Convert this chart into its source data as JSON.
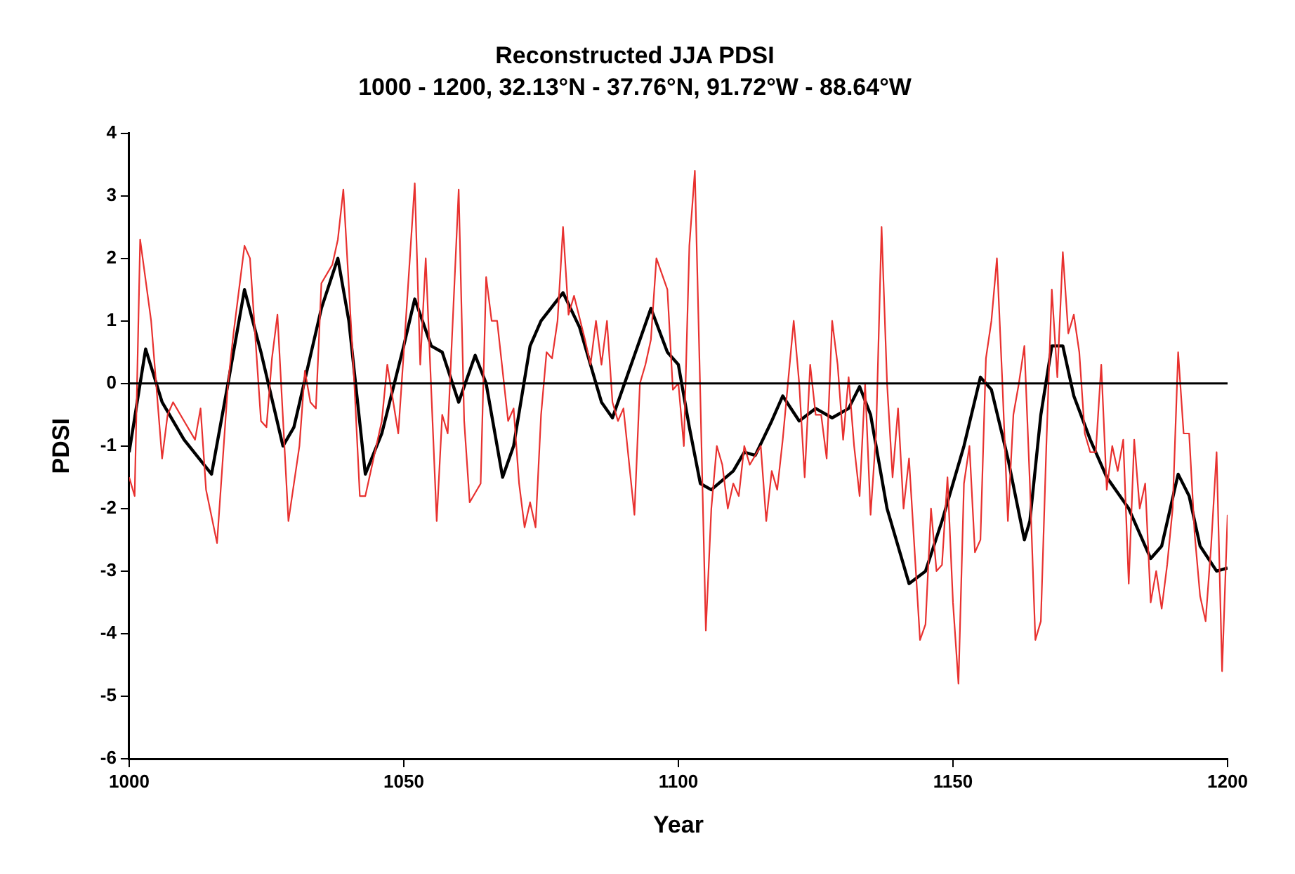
{
  "chart_data": {
    "type": "line",
    "title": "Reconstructed JJA PDSI",
    "subtitle": "1000 - 1200, 32.13°N - 37.76°N, 91.72°W - 88.64°W",
    "xlabel": "Year",
    "ylabel": "PDSI",
    "xlim": [
      1000,
      1200
    ],
    "xticks": [
      1000,
      1050,
      1100,
      1150,
      1200
    ],
    "ylim": [
      -6,
      4
    ],
    "yticks": [
      -6,
      -5,
      -4,
      -3,
      -2,
      -1,
      0,
      1,
      2,
      3,
      4
    ],
    "grid": false,
    "legend": false,
    "marker": "none",
    "line_style": "solid",
    "ref_lines": [
      {
        "axis": "y",
        "value": 0,
        "color": "#000000"
      }
    ],
    "series": [
      {
        "color": "#e8312f",
        "x": [
          1000,
          1001,
          1002,
          1004,
          1006,
          1007,
          1008,
          1010,
          1012,
          1013,
          1014,
          1016,
          1018,
          1019,
          1021,
          1022,
          1024,
          1025,
          1026,
          1027,
          1029,
          1031,
          1032,
          1033,
          1034,
          1035,
          1037,
          1038,
          1039,
          1041,
          1042,
          1043,
          1045,
          1046,
          1047,
          1049,
          1050,
          1052,
          1053,
          1054,
          1056,
          1057,
          1058,
          1060,
          1061,
          1062,
          1064,
          1065,
          1066,
          1067,
          1069,
          1070,
          1071,
          1072,
          1073,
          1074,
          1075,
          1076,
          1077,
          1078,
          1079,
          1080,
          1081,
          1083,
          1084,
          1085,
          1086,
          1087,
          1088,
          1089,
          1090,
          1092,
          1093,
          1094,
          1095,
          1096,
          1098,
          1099,
          1100,
          1101,
          1102,
          1103,
          1104,
          1105,
          1106,
          1107,
          1108,
          1109,
          1110,
          1111,
          1112,
          1113,
          1115,
          1116,
          1117,
          1118,
          1119,
          1121,
          1122,
          1123,
          1124,
          1125,
          1126,
          1127,
          1128,
          1129,
          1130,
          1131,
          1132,
          1133,
          1134,
          1135,
          1136,
          1137,
          1138,
          1139,
          1140,
          1141,
          1142,
          1144,
          1145,
          1146,
          1147,
          1148,
          1149,
          1150,
          1151,
          1152,
          1153,
          1154,
          1155,
          1156,
          1157,
          1158,
          1159,
          1160,
          1161,
          1162,
          1163,
          1164,
          1165,
          1166,
          1167,
          1168,
          1169,
          1170,
          1171,
          1172,
          1173,
          1174,
          1175,
          1176,
          1177,
          1178,
          1179,
          1180,
          1181,
          1182,
          1183,
          1184,
          1185,
          1186,
          1187,
          1188,
          1189,
          1190,
          1191,
          1192,
          1193,
          1194,
          1195,
          1196,
          1197,
          1198,
          1199,
          1200
        ],
        "values": [
          -1.5,
          -1.8,
          2.3,
          1.0,
          -1.2,
          -0.5,
          -0.3,
          -0.6,
          -0.9,
          -0.4,
          -1.7,
          -2.55,
          0.0,
          0.8,
          2.2,
          2.0,
          -0.6,
          -0.7,
          0.4,
          1.1,
          -2.2,
          -1.0,
          0.2,
          -0.3,
          -0.4,
          1.6,
          1.9,
          2.3,
          3.1,
          0.0,
          -1.8,
          -1.8,
          -1.0,
          -0.6,
          0.3,
          -0.8,
          0.5,
          3.2,
          0.3,
          2.0,
          -2.2,
          -0.5,
          -0.8,
          3.1,
          -0.6,
          -1.9,
          -1.6,
          1.7,
          1.0,
          1.0,
          -0.6,
          -0.4,
          -1.6,
          -2.3,
          -1.9,
          -2.3,
          -0.5,
          0.5,
          0.4,
          1.0,
          2.5,
          1.1,
          1.4,
          0.7,
          0.3,
          1.0,
          0.3,
          1.0,
          -0.3,
          -0.6,
          -0.4,
          -2.1,
          0.0,
          0.3,
          0.7,
          2.0,
          1.5,
          -0.1,
          0.0,
          -1.0,
          2.2,
          3.4,
          -0.2,
          -3.95,
          -2.0,
          -1.0,
          -1.3,
          -2.0,
          -1.6,
          -1.8,
          -1.0,
          -1.3,
          -1.0,
          -2.2,
          -1.4,
          -1.7,
          -0.9,
          1.0,
          0.0,
          -1.5,
          0.3,
          -0.5,
          -0.5,
          -1.2,
          1.0,
          0.3,
          -0.9,
          0.1,
          -1.0,
          -1.8,
          0.0,
          -2.1,
          -0.8,
          2.5,
          0.0,
          -1.5,
          -0.4,
          -2.0,
          -1.2,
          -4.1,
          -3.85,
          -2.0,
          -3.0,
          -2.9,
          -1.5,
          -3.5,
          -4.8,
          -1.6,
          -1.0,
          -2.7,
          -2.5,
          0.4,
          1.0,
          2.0,
          0.0,
          -2.2,
          -0.5,
          0.0,
          0.6,
          -1.6,
          -4.1,
          -3.8,
          -1.0,
          1.5,
          0.1,
          2.1,
          0.8,
          1.1,
          0.5,
          -0.8,
          -1.1,
          -1.1,
          0.3,
          -1.7,
          -1.0,
          -1.4,
          -0.9,
          -3.2,
          -0.9,
          -2.0,
          -1.6,
          -3.5,
          -3.0,
          -3.6,
          -2.9,
          -2.0,
          0.5,
          -0.8,
          -0.8,
          -2.4,
          -3.4,
          -3.8,
          -2.6,
          -1.1,
          -4.6,
          -2.1
        ]
      },
      {
        "color": "#000000",
        "x": [
          1000,
          1003,
          1006,
          1010,
          1015,
          1018,
          1021,
          1024,
          1028,
          1030,
          1035,
          1038,
          1040,
          1043,
          1046,
          1050,
          1052,
          1055,
          1057,
          1060,
          1063,
          1065,
          1068,
          1070,
          1073,
          1075,
          1079,
          1082,
          1086,
          1088,
          1091,
          1095,
          1098,
          1100,
          1102,
          1104,
          1106,
          1110,
          1112,
          1114,
          1117,
          1119,
          1122,
          1125,
          1128,
          1131,
          1133,
          1135,
          1138,
          1142,
          1145,
          1148,
          1152,
          1155,
          1157,
          1160,
          1163,
          1164,
          1166,
          1168,
          1170,
          1172,
          1175,
          1178,
          1182,
          1186,
          1188,
          1191,
          1193,
          1195,
          1198,
          1200
        ],
        "values": [
          -1.1,
          0.55,
          -0.3,
          -0.9,
          -1.45,
          0.0,
          1.5,
          0.5,
          -1.0,
          -0.7,
          1.2,
          2.0,
          1.0,
          -1.45,
          -0.8,
          0.6,
          1.35,
          0.6,
          0.5,
          -0.3,
          0.45,
          0.0,
          -1.5,
          -1.0,
          0.6,
          1.0,
          1.45,
          0.9,
          -0.3,
          -0.55,
          0.2,
          1.2,
          0.5,
          0.3,
          -0.7,
          -1.6,
          -1.7,
          -1.4,
          -1.1,
          -1.15,
          -0.6,
          -0.2,
          -0.6,
          -0.4,
          -0.55,
          -0.4,
          -0.05,
          -0.5,
          -2.0,
          -3.2,
          -3.0,
          -2.2,
          -1.0,
          0.1,
          -0.1,
          -1.2,
          -2.5,
          -2.2,
          -0.5,
          0.6,
          0.6,
          -0.2,
          -0.9,
          -1.5,
          -2.0,
          -2.8,
          -2.6,
          -1.45,
          -1.8,
          -2.6,
          -3.0,
          -2.95
        ]
      }
    ]
  }
}
